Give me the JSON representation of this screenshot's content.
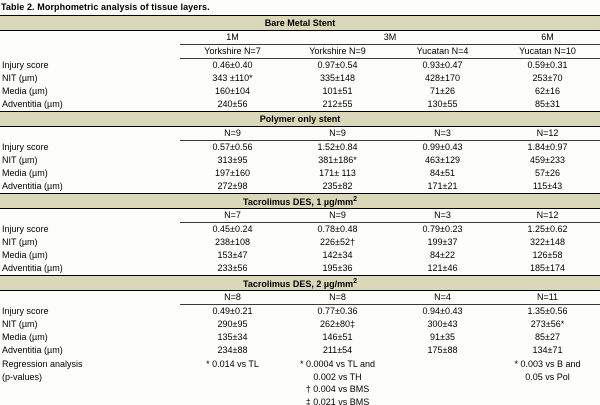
{
  "title": "Table 2. Morphometric analysis of tissue layers.",
  "colors": {
    "band_bg": "#dbd7b9",
    "rule": "#000000"
  },
  "row_labels": [
    "Injury score",
    "NIT (µm)",
    "Media (µm)",
    "Adventitia (µm)"
  ],
  "sections": [
    {
      "band": "Bare Metal Stent",
      "time_headers": [
        "1M",
        "3M",
        "6M"
      ],
      "col_headers": [
        "Yorkshire N=7",
        "Yorkshire N=9",
        "Yucatan N=4",
        "Yucatan N=10"
      ],
      "rows": [
        [
          "0.46±0.40",
          "0.97±0.54",
          "0.93±0.47",
          "0.59±0.31"
        ],
        [
          "343 ±110*",
          "335±148",
          "428±170",
          "253±70"
        ],
        [
          "160±104",
          "101±51",
          "71±26",
          "62±16"
        ],
        [
          "240±56",
          "212±55",
          "130±55",
          "85±31"
        ]
      ]
    },
    {
      "band": "Polymer only stent",
      "col_headers": [
        "N=9",
        "N=9",
        "N=3",
        "N=12"
      ],
      "rows": [
        [
          "0.57±0.56",
          "1.52±0.84",
          "0.99±0.43",
          "1.84±0.97"
        ],
        [
          "313±95",
          "381±186*",
          "463±129",
          "459±233"
        ],
        [
          "197±160",
          "171± 113",
          "84±51",
          "57±26"
        ],
        [
          "272±98",
          "235±82",
          "171±21",
          "115±43"
        ]
      ]
    },
    {
      "band": "Tacrolimus DES, 1 µg/mm",
      "band_sup": "2",
      "col_headers": [
        "N=7",
        "N=9",
        "N=3",
        "N=12"
      ],
      "rows": [
        [
          "0.45±0.24",
          "0.78±0.48",
          "0.79±0.23",
          "1.25±0.62"
        ],
        [
          "238±108",
          "226±52†",
          "199±37",
          "322±148"
        ],
        [
          "153±47",
          "142±34",
          "84±22",
          "126±58"
        ],
        [
          "233±56",
          "195±36",
          "121±46",
          "185±174"
        ]
      ]
    },
    {
      "band": "Tacrolimus DES, 2 µg/mm",
      "band_sup": "2",
      "col_headers": [
        "N=8",
        "N=8",
        "N=4",
        "N=11"
      ],
      "rows": [
        [
          "0.49±0.21",
          "0.77±0.36",
          "0.94±0.43",
          "1.35±0.56"
        ],
        [
          "290±95",
          "262±80‡",
          "300±43",
          "273±56*"
        ],
        [
          "135±34",
          "146±51",
          "91±35",
          "85±27"
        ],
        [
          "234±88",
          "211±54",
          "175±88",
          "134±71"
        ]
      ]
    }
  ],
  "regression": {
    "label": "Regression analysis\n(p-values)",
    "cells": [
      "* 0.014 vs TL",
      "* 0.0004 vs TL and\n0.002 vs TH\n† 0.004 vs BMS\n‡ 0.021 vs BMS",
      "",
      "* 0.003 vs B and\n0.05 vs Pol"
    ]
  }
}
